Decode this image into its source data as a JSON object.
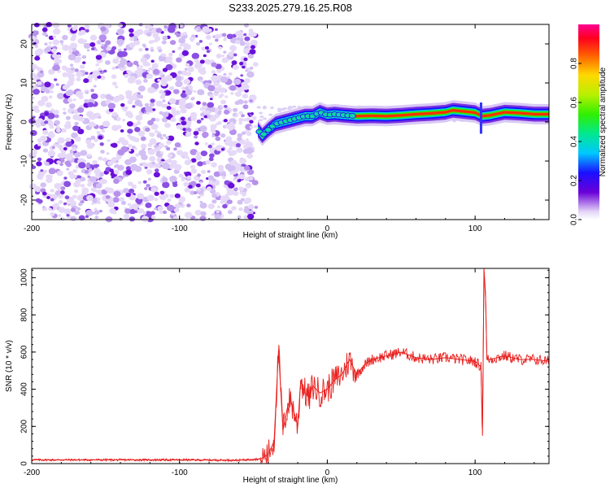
{
  "figure_title": "S233.2025.279.16.25.R08",
  "chart_data": [
    {
      "type": "heatmap",
      "title": "S233.2025.279.16.25.R08",
      "xlabel": "Height of straight line (km)",
      "ylabel": "Frequency (Hz)",
      "xlim": [
        -200,
        150
      ],
      "ylim": [
        -25,
        25
      ],
      "xticks": [
        -200,
        -100,
        0,
        100
      ],
      "yticks": [
        -20,
        -10,
        0,
        10,
        20
      ],
      "noise_region_x": [
        -200,
        -48
      ],
      "signal_track": {
        "x": [
          -47,
          -44,
          -40,
          -35,
          -30,
          -25,
          -20,
          -15,
          -10,
          -5,
          0,
          5,
          10,
          20,
          30,
          40,
          50,
          60,
          70,
          80,
          85,
          90,
          95,
          100,
          105,
          110,
          120,
          130,
          140,
          150
        ],
        "frequency_hz": [
          -2,
          -3.5,
          -2,
          -0.5,
          0,
          0.5,
          1,
          1.5,
          1.5,
          2.5,
          1.8,
          2,
          1.8,
          1.5,
          1.6,
          1.5,
          1.7,
          2,
          2.2,
          2.5,
          3,
          2.8,
          2.6,
          2.4,
          1.5,
          1.7,
          2.5,
          2.3,
          2,
          2
        ]
      },
      "colorbar": {
        "label": "Normalized spectral amplitude",
        "ticks": [
          "0.0",
          "0.2",
          "0.4",
          "0.6",
          "0.8"
        ],
        "range": [
          0,
          1
        ]
      }
    },
    {
      "type": "line",
      "xlabel": "Height of straight line (km)",
      "ylabel": "SNR (10 * v/v)",
      "xlim": [
        -200,
        150
      ],
      "ylim": [
        0,
        1050
      ],
      "xticks": [
        -200,
        -100,
        0,
        100
      ],
      "yticks": [
        0,
        200,
        400,
        600,
        800,
        1000
      ],
      "series": [
        {
          "name": "SNR",
          "color": "#e8201e",
          "x": [
            -200,
            -150,
            -100,
            -60,
            -45,
            -40,
            -36,
            -33,
            -30,
            -27,
            -25,
            -20,
            -18,
            -15,
            -12,
            -10,
            -5,
            0,
            5,
            10,
            15,
            20,
            25,
            30,
            40,
            50,
            60,
            70,
            80,
            90,
            100,
            104,
            105,
            106,
            107,
            108,
            110,
            120,
            130,
            140,
            150
          ],
          "y": [
            20,
            20,
            20,
            18,
            25,
            50,
            120,
            610,
            180,
            300,
            350,
            200,
            450,
            380,
            350,
            420,
            380,
            400,
            450,
            480,
            560,
            480,
            530,
            560,
            580,
            600,
            570,
            560,
            570,
            560,
            550,
            520,
            150,
            1050,
            920,
            560,
            560,
            580,
            560,
            560,
            550
          ]
        }
      ]
    }
  ]
}
